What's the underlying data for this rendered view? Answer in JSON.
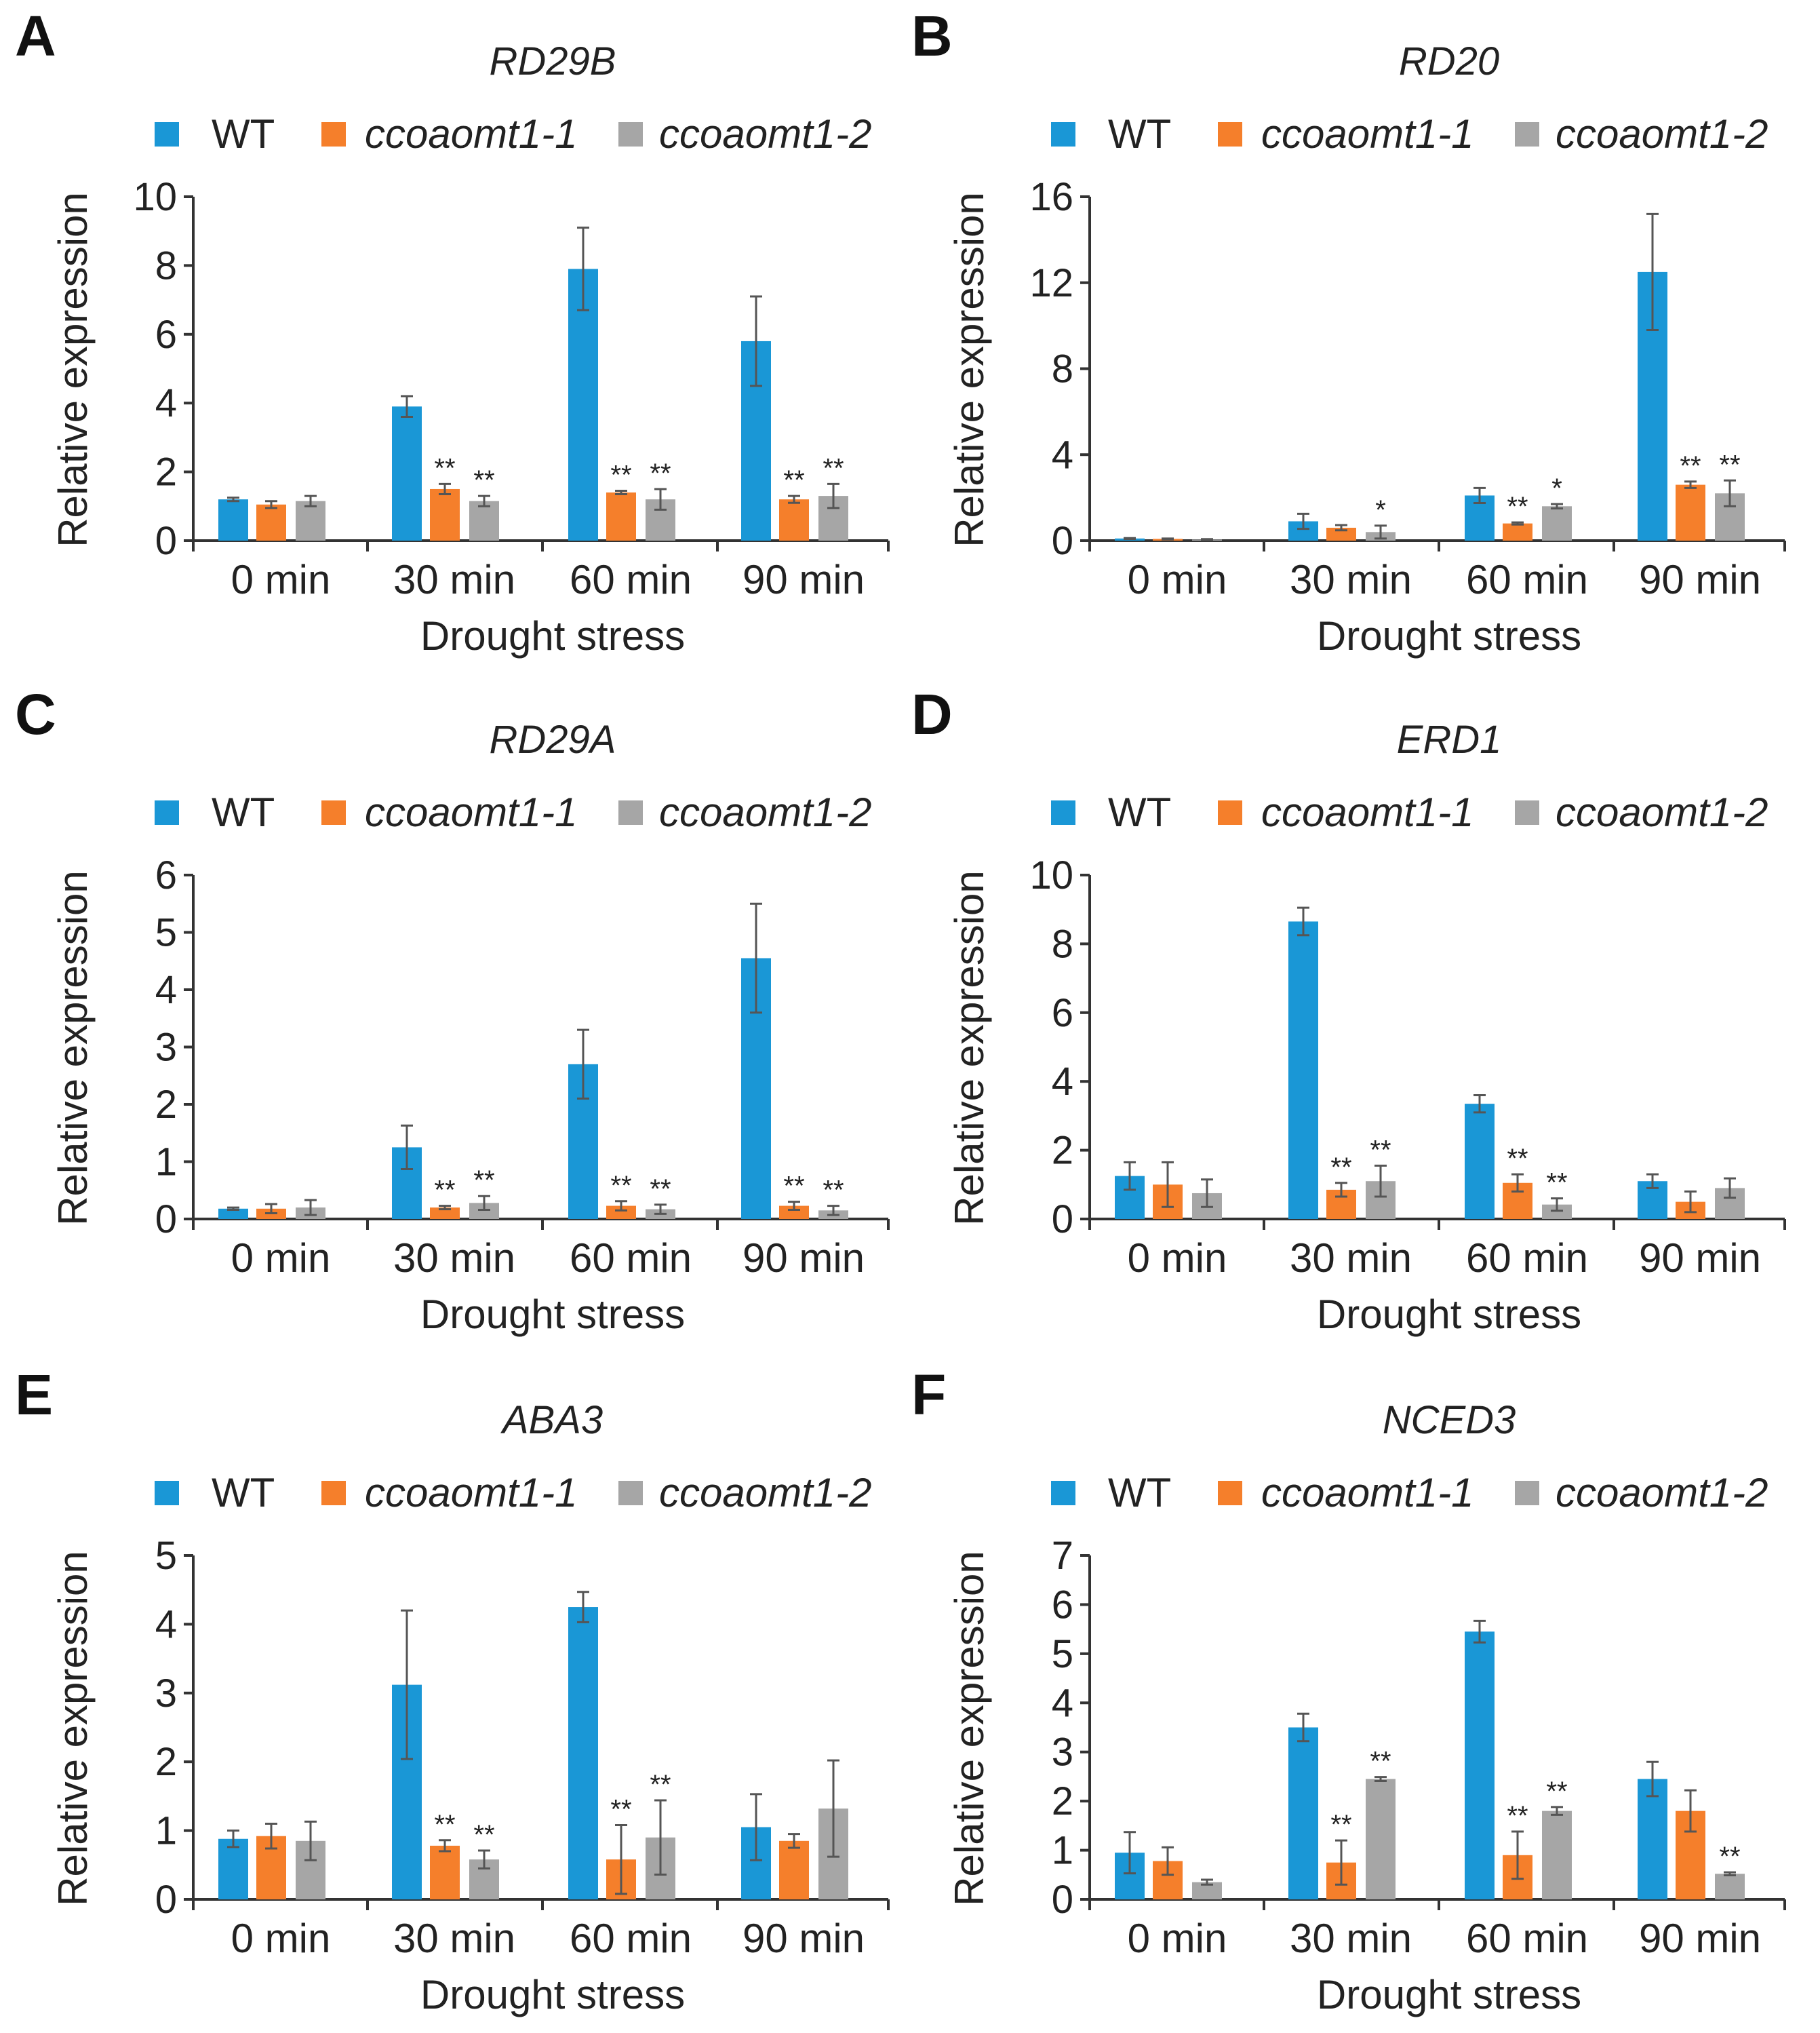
{
  "figure": {
    "legend_labels": [
      "WT",
      "ccoaomt1-1",
      "ccoaomt1-2"
    ],
    "series_colors": [
      "#1a97d6",
      "#f57f2b",
      "#a6a6a6"
    ],
    "xlabel": "Drought stress",
    "ylabel": "Relative expression",
    "categories": [
      "0 min",
      "30 min",
      "60 min",
      "90 min"
    ]
  },
  "chart_data": [
    {
      "panel": "A",
      "type": "bar",
      "title": "RD29B",
      "ylim": [
        0,
        10
      ],
      "yticks": [
        0,
        2,
        4,
        6,
        8,
        10
      ],
      "series": [
        {
          "name": "WT",
          "values": [
            1.2,
            3.9,
            7.9,
            5.8
          ],
          "errors": [
            0.05,
            0.3,
            1.2,
            1.3
          ],
          "sig": [
            "",
            "",
            "",
            ""
          ]
        },
        {
          "name": "ccoaomt1-1",
          "values": [
            1.05,
            1.5,
            1.4,
            1.2
          ],
          "errors": [
            0.1,
            0.15,
            0.05,
            0.1
          ],
          "sig": [
            "",
            "**",
            "**",
            "**"
          ]
        },
        {
          "name": "ccoaomt1-2",
          "values": [
            1.15,
            1.15,
            1.2,
            1.3
          ],
          "errors": [
            0.15,
            0.15,
            0.3,
            0.35
          ],
          "sig": [
            "",
            "**",
            "**",
            "**"
          ]
        }
      ]
    },
    {
      "panel": "B",
      "type": "bar",
      "title": "RD20",
      "ylim": [
        0,
        16
      ],
      "yticks": [
        0,
        4,
        8,
        12,
        16
      ],
      "series": [
        {
          "name": "WT",
          "values": [
            0.1,
            0.9,
            2.1,
            12.5
          ],
          "errors": [
            0.02,
            0.35,
            0.35,
            2.7
          ],
          "sig": [
            "",
            "",
            "",
            ""
          ]
        },
        {
          "name": "ccoaomt1-1",
          "values": [
            0.08,
            0.6,
            0.8,
            2.6
          ],
          "errors": [
            0.02,
            0.12,
            0.05,
            0.15
          ],
          "sig": [
            "",
            "",
            "**",
            "**"
          ]
        },
        {
          "name": "ccoaomt1-2",
          "values": [
            0.05,
            0.4,
            1.6,
            2.2
          ],
          "errors": [
            0.02,
            0.3,
            0.1,
            0.6
          ],
          "sig": [
            "",
            "*",
            "*",
            "**"
          ]
        }
      ]
    },
    {
      "panel": "C",
      "type": "bar",
      "title": "RD29A",
      "ylim": [
        0,
        6
      ],
      "yticks": [
        0,
        1,
        2,
        3,
        4,
        5,
        6
      ],
      "series": [
        {
          "name": "WT",
          "values": [
            0.18,
            1.25,
            2.7,
            4.55
          ],
          "errors": [
            0.02,
            0.38,
            0.6,
            0.95
          ],
          "sig": [
            "",
            "",
            "",
            ""
          ]
        },
        {
          "name": "ccoaomt1-1",
          "values": [
            0.18,
            0.2,
            0.23,
            0.23
          ],
          "errors": [
            0.08,
            0.03,
            0.08,
            0.07
          ],
          "sig": [
            "",
            "**",
            "**",
            "**"
          ]
        },
        {
          "name": "ccoaomt1-2",
          "values": [
            0.2,
            0.28,
            0.17,
            0.15
          ],
          "errors": [
            0.13,
            0.12,
            0.08,
            0.08
          ],
          "sig": [
            "",
            "**",
            "**",
            "**"
          ]
        }
      ]
    },
    {
      "panel": "D",
      "type": "bar",
      "title": "ERD1",
      "ylim": [
        0,
        10
      ],
      "yticks": [
        0,
        2,
        4,
        6,
        8,
        10
      ],
      "series": [
        {
          "name": "WT",
          "values": [
            1.25,
            8.65,
            3.35,
            1.1
          ],
          "errors": [
            0.4,
            0.4,
            0.25,
            0.2
          ],
          "sig": [
            "",
            "",
            "",
            ""
          ]
        },
        {
          "name": "ccoaomt1-1",
          "values": [
            1.0,
            0.85,
            1.05,
            0.5
          ],
          "errors": [
            0.65,
            0.2,
            0.25,
            0.3
          ],
          "sig": [
            "",
            "**",
            "**",
            ""
          ]
        },
        {
          "name": "ccoaomt1-2",
          "values": [
            0.75,
            1.1,
            0.42,
            0.9
          ],
          "errors": [
            0.4,
            0.45,
            0.18,
            0.28
          ],
          "sig": [
            "",
            "**",
            "**",
            ""
          ]
        }
      ]
    },
    {
      "panel": "E",
      "type": "bar",
      "title": "ABA3",
      "ylim": [
        0,
        5
      ],
      "yticks": [
        0,
        1,
        2,
        3,
        4,
        5
      ],
      "series": [
        {
          "name": "WT",
          "values": [
            0.88,
            3.12,
            4.25,
            1.05
          ],
          "errors": [
            0.12,
            1.08,
            0.22,
            0.48
          ],
          "sig": [
            "",
            "",
            "",
            ""
          ]
        },
        {
          "name": "ccoaomt1-1",
          "values": [
            0.92,
            0.78,
            0.58,
            0.85
          ],
          "errors": [
            0.18,
            0.08,
            0.5,
            0.1
          ],
          "sig": [
            "",
            "**",
            "**",
            ""
          ]
        },
        {
          "name": "ccoaomt1-2",
          "values": [
            0.85,
            0.58,
            0.9,
            1.32
          ],
          "errors": [
            0.28,
            0.13,
            0.54,
            0.7
          ],
          "sig": [
            "",
            "**",
            "**",
            ""
          ]
        }
      ]
    },
    {
      "panel": "F",
      "type": "bar",
      "title": "NCED3",
      "ylim": [
        0,
        7
      ],
      "yticks": [
        0,
        1,
        2,
        3,
        4,
        5,
        6,
        7
      ],
      "series": [
        {
          "name": "WT",
          "values": [
            0.95,
            3.5,
            5.45,
            2.45
          ],
          "errors": [
            0.42,
            0.28,
            0.22,
            0.35
          ],
          "sig": [
            "",
            "",
            "",
            ""
          ]
        },
        {
          "name": "ccoaomt1-1",
          "values": [
            0.78,
            0.75,
            0.9,
            1.8
          ],
          "errors": [
            0.28,
            0.45,
            0.48,
            0.42
          ],
          "sig": [
            "",
            "**",
            "**",
            ""
          ]
        },
        {
          "name": "ccoaomt1-2",
          "values": [
            0.35,
            2.45,
            1.8,
            0.52
          ],
          "errors": [
            0.05,
            0.04,
            0.08,
            0.03
          ],
          "sig": [
            "",
            "**",
            "**",
            "**"
          ]
        }
      ]
    }
  ]
}
